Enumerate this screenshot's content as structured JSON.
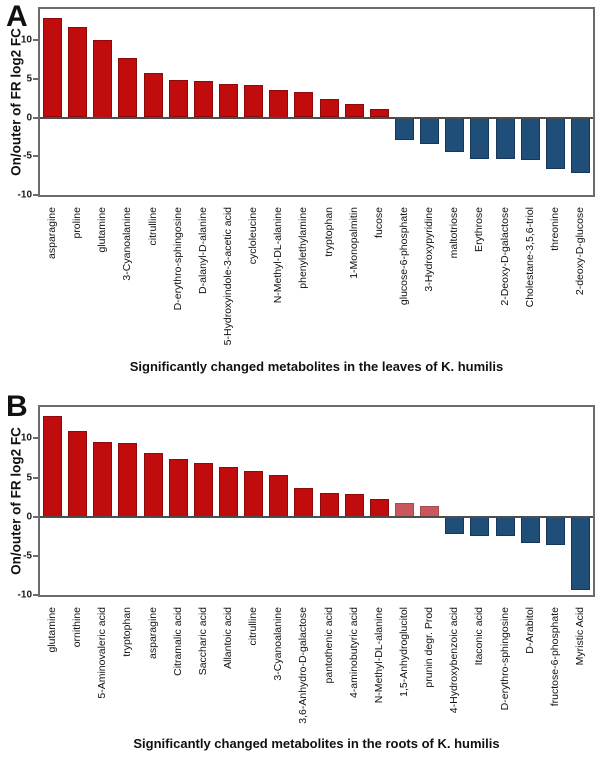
{
  "palette": {
    "up": "#C00C0C",
    "up_border": "#8E0A0A",
    "up_light": "#C9575B",
    "up_light_border": "#A94A4E",
    "down": "#1F4E79",
    "down_border": "#16375A",
    "zero_line": "#4D4D4D",
    "frame": "#6B6B6B",
    "text": "#111111"
  },
  "chart_data": [
    {
      "type": "bar",
      "panel_letter": "A",
      "title": "Significantly changed metabolites in the leaves of K. humilis",
      "ylabel": "On/outer of FR log2 FC",
      "xlabel": "",
      "ylim": [
        -10,
        14
      ],
      "yticks": [
        10,
        5,
        0,
        -5,
        -10
      ],
      "grid": false,
      "legend": "none",
      "categories": [
        "asparagine",
        "proline",
        "glutamine",
        "3-Cyanoalanine",
        "citrulline",
        "D-erythro-sphingosine",
        "D-alanyl-D-alanine",
        "5-Hydroxyindole-3-acetic acid",
        "cycloleucine",
        "N-Methyl-DL-alanine",
        "phenylethylamine",
        "tryptophan",
        "1-Monopalmitin",
        "fucose",
        "glucose-6-phosphate",
        "3-Hydroxypyridine",
        "maltotriose",
        "Erythrose",
        "2-Deoxy-D-galactose",
        "Cholestane-3,5,6-triol",
        "threonine",
        "2-deoxy-D-glucose"
      ],
      "values": [
        12.8,
        11.7,
        10.0,
        7.7,
        5.8,
        4.9,
        4.7,
        4.3,
        4.2,
        3.5,
        3.3,
        2.4,
        1.7,
        1.1,
        -2.9,
        -3.4,
        -4.4,
        -5.3,
        -5.4,
        -5.5,
        -6.7,
        -7.2
      ],
      "colors": [
        "up",
        "up",
        "up",
        "up",
        "up",
        "up",
        "up",
        "up",
        "up",
        "up",
        "up",
        "up",
        "up",
        "up",
        "down",
        "down",
        "down",
        "down",
        "down",
        "down",
        "down",
        "down"
      ]
    },
    {
      "type": "bar",
      "panel_letter": "B",
      "title": "Significantly changed metabolites in the roots of K. humilis",
      "ylabel": "On/outer of FR log2 FC",
      "xlabel": "",
      "ylim": [
        -10,
        14
      ],
      "yticks": [
        10,
        5,
        0,
        -5,
        -10
      ],
      "grid": false,
      "legend": "none",
      "categories": [
        "glutamine",
        "ornithine",
        "5-Aminovaleric acid",
        "tryptophan",
        "asparagine",
        "Citramalic acid",
        "Saccharic acid",
        "Allantoic acid",
        "citrulline",
        "3-Cyanoalanine",
        "3,6-Anhydro-D-galactose",
        "pantothenic acid",
        "4-aminobutyric acid",
        "N-Methyl-DL-alanine",
        "1,5-Anhydroglucitol",
        "prunin degr. Prod",
        "4-Hydroxybenzoic acid",
        "Itaconic acid",
        "D-erythro-sphingosine",
        "D-Arabitol",
        "fructose-6-phosphate",
        "Myristic Acid"
      ],
      "values": [
        12.9,
        11.0,
        9.5,
        9.4,
        8.1,
        7.3,
        6.9,
        6.4,
        5.8,
        5.3,
        3.6,
        3.0,
        2.9,
        2.3,
        1.7,
        1.3,
        -2.2,
        -2.5,
        -2.5,
        -3.4,
        -3.6,
        -9.3
      ],
      "colors": [
        "up",
        "up",
        "up",
        "up",
        "up",
        "up",
        "up",
        "up",
        "up",
        "up",
        "up",
        "up",
        "up",
        "up",
        "up_light",
        "up_light",
        "down",
        "down",
        "down",
        "down",
        "down",
        "down"
      ]
    }
  ]
}
